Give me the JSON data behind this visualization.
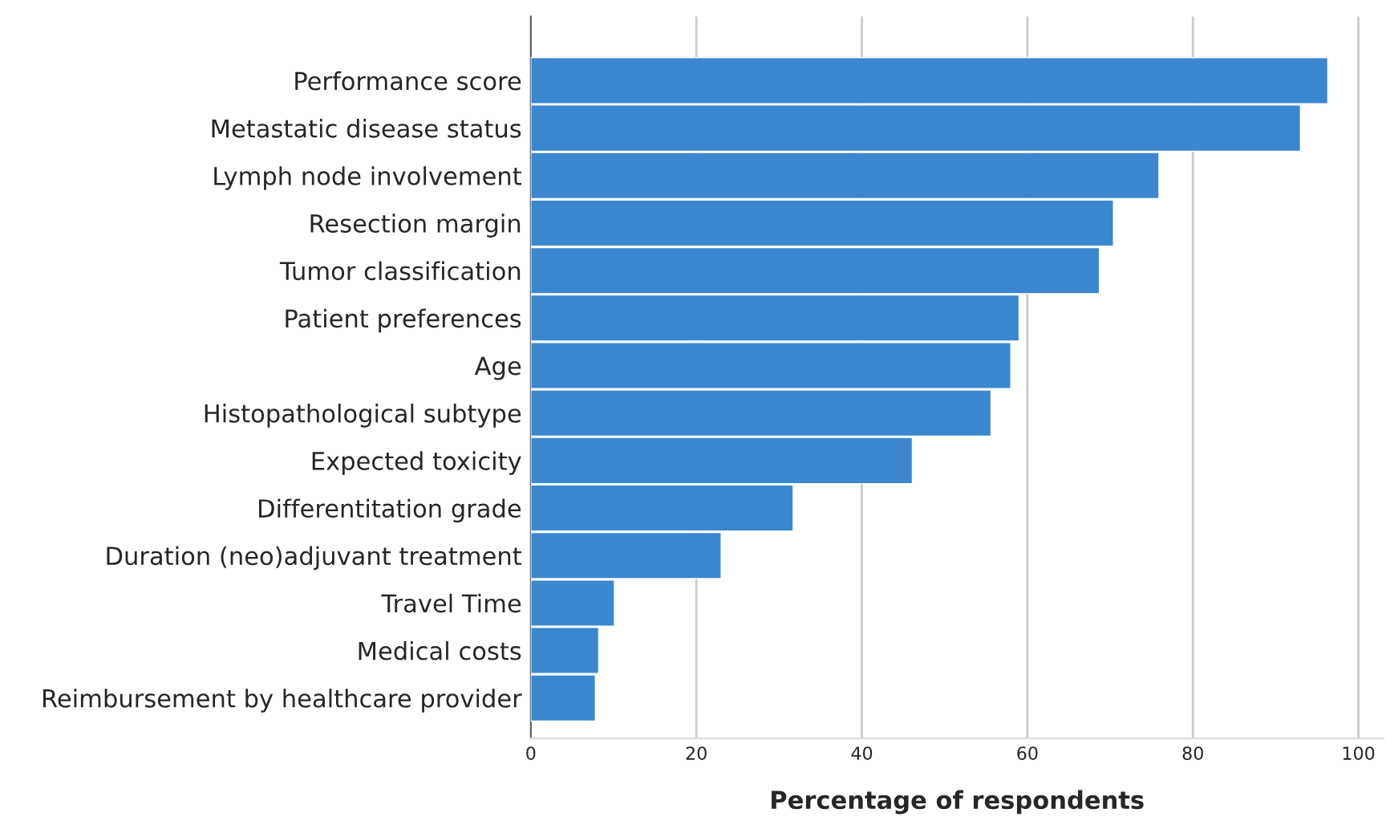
{
  "chart_data": {
    "type": "bar",
    "orientation": "horizontal",
    "xlabel": "Percentage of respondents",
    "categories": [
      "Performance score",
      "Metastatic disease status",
      "Lymph node involvement",
      "Resection margin",
      "Tumor classification",
      "Patient preferences",
      "Age",
      "Histopathological subtype",
      "Expected toxicity",
      "Differentitation grade",
      "Duration (neo)adjuvant treatment",
      "Travel Time",
      "Medical costs",
      "Reimbursement by healthcare provider"
    ],
    "values": [
      96.3,
      93.0,
      75.9,
      70.4,
      68.7,
      59.0,
      58.0,
      55.6,
      46.1,
      31.7,
      23.0,
      10.1,
      8.2,
      7.8
    ],
    "color": "#3a87d0",
    "xlim": [
      0,
      103
    ],
    "xticks": [
      0,
      20,
      40,
      60,
      80,
      100
    ],
    "grid": "x"
  }
}
